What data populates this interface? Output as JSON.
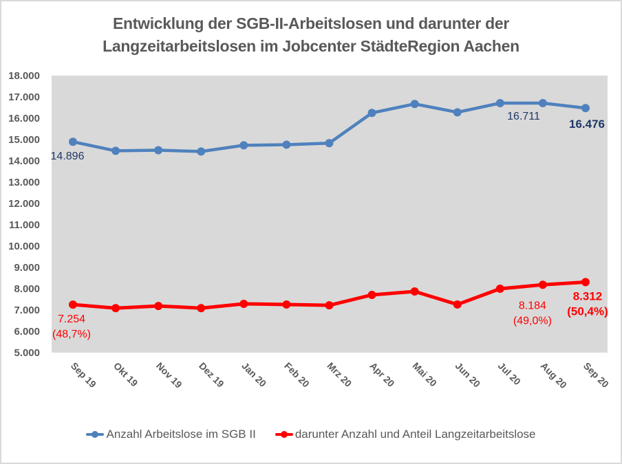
{
  "chart_data": {
    "type": "line",
    "title": "Entwicklung der SGB-II-Arbeitslosen und darunter der Langzeitarbeitslosen im Jobcenter StädteRegion Aachen",
    "title_lines": [
      "Entwicklung der SGB-II-Arbeitslosen und darunter der",
      "Langzeitarbeitslosen im Jobcenter StädteRegion Aachen"
    ],
    "xlabel": "",
    "ylabel": "",
    "categories": [
      "Sep 19",
      "Okt 19",
      "Nov 19",
      "Dez 19",
      "Jan 20",
      "Feb 20",
      "Mrz 20",
      "Apr 20",
      "Mai 20",
      "Jun 20",
      "Jul 20",
      "Aug 20",
      "Sep 20"
    ],
    "ylim": [
      5000,
      18000
    ],
    "yticks": [
      5000,
      6000,
      7000,
      8000,
      9000,
      10000,
      11000,
      12000,
      13000,
      14000,
      15000,
      16000,
      17000,
      18000
    ],
    "ytick_labels": [
      "5.000",
      "6.000",
      "7.000",
      "8.000",
      "9.000",
      "10.000",
      "11.000",
      "12.000",
      "13.000",
      "14.000",
      "15.000",
      "16.000",
      "17.000",
      "18.000"
    ],
    "grid": false,
    "plot_background": "#d9d9d9",
    "legend_position": "bottom",
    "series": [
      {
        "name": "Anzahl Arbeitslose im SGB II",
        "color": "#4f81bd",
        "values": [
          14896,
          14470,
          14500,
          14440,
          14730,
          14760,
          14830,
          16250,
          16670,
          16280,
          16710,
          16711,
          16476
        ],
        "labels": [
          {
            "index": 0,
            "text": "14.896",
            "color": "#1f3864",
            "bold": false
          },
          {
            "index": 11,
            "text": "16.711",
            "color": "#1f3864",
            "bold": false
          },
          {
            "index": 12,
            "text": "16.476",
            "color": "#1f3864",
            "bold": true
          }
        ]
      },
      {
        "name": "darunter Anzahl und Anteil Langzeitarbeitslose",
        "color": "#ff0000",
        "values": [
          7254,
          7090,
          7190,
          7090,
          7290,
          7260,
          7220,
          7710,
          7870,
          7260,
          8000,
          8184,
          8312
        ],
        "labels": [
          {
            "index": 0,
            "text": "7.254",
            "sub": "(48,7%)",
            "color": "#ff0000",
            "bold": false
          },
          {
            "index": 11,
            "text": "8.184",
            "sub": "(49,0%)",
            "color": "#ff0000",
            "bold": false
          },
          {
            "index": 12,
            "text": "8.312",
            "sub": "(50,4%)",
            "color": "#ff0000",
            "bold": true
          }
        ]
      }
    ]
  },
  "legend": {
    "items": [
      {
        "label": "Anzahl Arbeitslose im SGB II",
        "color": "#4f81bd"
      },
      {
        "label": "darunter Anzahl und Anteil Langzeitarbeitslose",
        "color": "#ff0000"
      }
    ]
  }
}
